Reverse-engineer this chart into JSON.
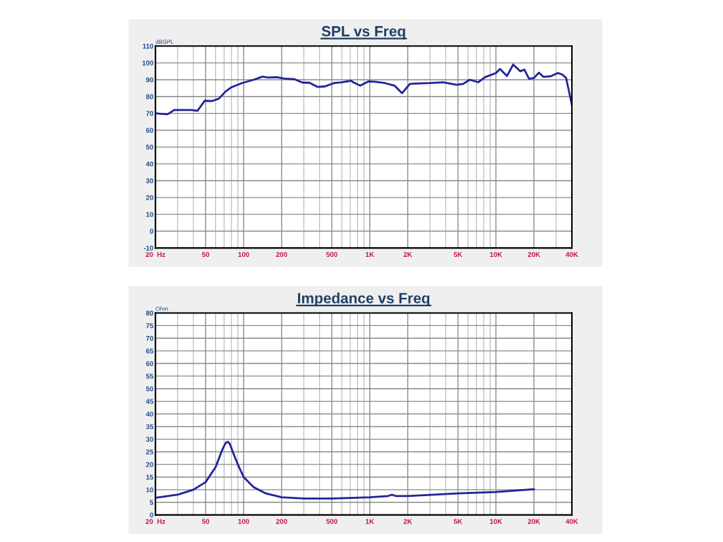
{
  "chart_data": [
    {
      "type": "line",
      "title": "SPL vs Freq",
      "ylabel": "dBSPL",
      "log": "x",
      "grid": true,
      "xlim": [
        20,
        40000
      ],
      "xticks": [
        {
          "value": 20,
          "label": "20  Hz"
        },
        50,
        100,
        200,
        500,
        {
          "value": 1000,
          "label": "1K"
        },
        {
          "value": 2000,
          "label": "2K"
        },
        {
          "value": 5000,
          "label": "5K"
        },
        {
          "value": 10000,
          "label": "10K"
        },
        {
          "value": 20000,
          "label": "20K"
        },
        {
          "value": 40000,
          "label": "40K"
        }
      ],
      "ylim": [
        -10,
        110
      ],
      "yticks": [
        -10,
        0,
        10,
        20,
        30,
        40,
        50,
        60,
        70,
        80,
        90,
        100,
        110
      ],
      "series": [
        {
          "color": "#23239a",
          "x": [
            20,
            22.7,
            25,
            28.2,
            32,
            38.9,
            43,
            49.2,
            56,
            63.5,
            72,
            80,
            97,
            120,
            141,
            157,
            183,
            211,
            253,
            292,
            332,
            387,
            440,
            520,
            600,
            712,
            738,
            840,
            980,
            1100,
            1320,
            1570,
            1800,
            2080,
            2500,
            3000,
            3830,
            4860,
            5500,
            6200,
            7230,
            8200,
            10000,
            10770,
            12240,
            13700,
            15600,
            16800,
            18300,
            20000,
            21900,
            23800,
            27000,
            30900,
            33700,
            36000,
            40000
          ],
          "values": [
            70,
            69.7,
            69.5,
            72,
            72,
            72,
            71.5,
            77.5,
            77.3,
            78.7,
            83,
            85.5,
            88,
            90,
            91.8,
            91.3,
            91.5,
            90.7,
            90.3,
            88.3,
            88.2,
            85.7,
            86,
            88,
            88.5,
            89.4,
            88.5,
            86.5,
            89,
            88.8,
            88,
            86.5,
            82,
            87.5,
            87.8,
            88,
            88.5,
            87,
            87.5,
            90,
            88.5,
            91.5,
            94,
            96.4,
            92.2,
            99,
            95,
            96,
            90.6,
            91,
            94.2,
            91.7,
            92,
            94,
            93,
            91,
            75
          ]
        }
      ]
    },
    {
      "type": "line",
      "title": "Impedance vs Freq",
      "ylabel": "Ohm",
      "log": "x",
      "grid": true,
      "xlim": [
        20,
        40000
      ],
      "xticks": [
        {
          "value": 20,
          "label": "20  Hz"
        },
        50,
        100,
        200,
        500,
        {
          "value": 1000,
          "label": "1K"
        },
        {
          "value": 2000,
          "label": "2K"
        },
        {
          "value": 5000,
          "label": "5K"
        },
        {
          "value": 10000,
          "label": "10K"
        },
        {
          "value": 20000,
          "label": "20K"
        },
        {
          "value": 40000,
          "label": "40K"
        }
      ],
      "ylim": [
        0,
        80
      ],
      "yticks": [
        0,
        5,
        10,
        15,
        20,
        25,
        30,
        35,
        40,
        45,
        50,
        55,
        60,
        65,
        70,
        75,
        80
      ],
      "series": [
        {
          "color": "#23239a",
          "x": [
            20,
            30,
            40,
            50,
            60,
            68,
            72,
            75,
            78,
            82,
            90,
            100,
            120,
            150,
            200,
            300,
            500,
            1000,
            1400,
            1500,
            1600,
            2000,
            5000,
            10000,
            20000
          ],
          "values": [
            6.8,
            8,
            10,
            13,
            19,
            26,
            28.5,
            29,
            28,
            25,
            20,
            15,
            11,
            8.5,
            7,
            6.5,
            6.5,
            7,
            7.5,
            8,
            7.5,
            7.5,
            8.5,
            9.1,
            10.2
          ]
        }
      ]
    }
  ]
}
